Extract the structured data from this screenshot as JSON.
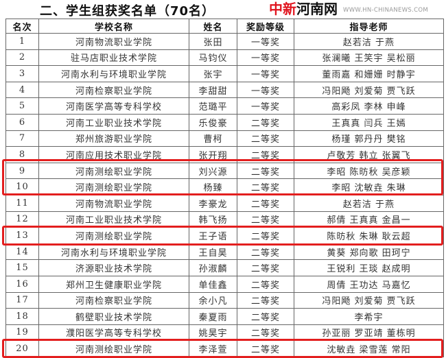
{
  "title": "二、学生组获奖名单（70名）",
  "headers": [
    "名次",
    "学校名称",
    "姓名",
    "奖励等级",
    "指导老师"
  ],
  "rows": [
    [
      "1",
      "河南物流职业学院",
      "张田",
      "一等奖",
      "赵若洁 于燕"
    ],
    [
      "2",
      "驻马店职业技术学院",
      "马钧仪",
      "一等奖",
      "张澜曦 王笑宇 吴松丽"
    ],
    [
      "3",
      "河南水利与环境职业学院",
      "张宇",
      "一等奖",
      "董雨嘉 和姗姗 时静宇"
    ],
    [
      "4",
      "河南检察职业学院",
      "李甜甜",
      "一等奖",
      "冯阳飏 刘爱菊 贾飞跃"
    ],
    [
      "5",
      "河南医学高等专科学校",
      "范璐平",
      "一等奖",
      "高彩凤 李林 申峰"
    ],
    [
      "6",
      "河南工业职业技术学院",
      "乐俊豪",
      "二等奖",
      "王真真 闫兵 王嫣"
    ],
    [
      "7",
      "郑州旅游职业学院",
      "曹柯",
      "二等奖",
      "杨瑾 郭丹丹 樊铭"
    ],
    [
      "8",
      "河南应用技术职业学院",
      "张开翔",
      "二等奖",
      "卢敬芳 韩立 张翼飞"
    ],
    [
      "9",
      "河南测绘职业学院",
      "刘兴源",
      "二等奖",
      "李昭 陈昉秋 吴彦颖"
    ],
    [
      "10",
      "河南测绘职业学院",
      "杨臻",
      "二等奖",
      "李昭 沈敏垚 朱琳"
    ],
    [
      "11",
      "河南物流职业学院",
      "李豪龙",
      "二等奖",
      "赵若洁 于燕"
    ],
    [
      "12",
      "河南工业职业技术学院",
      "韩飞扬",
      "二等奖",
      "郝倩 王真真 金昌一"
    ],
    [
      "13",
      "河南测绘职业学院",
      "王子语",
      "二等奖",
      "陈昉秋 朱琳 耿云超"
    ],
    [
      "14",
      "河南水利与环境职业学院",
      "王自昊",
      "二等奖",
      "黄葵 郑向歌 田珂宁"
    ],
    [
      "15",
      "济源职业技术学院",
      "孙淑麟",
      "二等奖",
      "王锐利 王琰 赵成明"
    ],
    [
      "16",
      "郑州卫生健康职业学院",
      "单佳鑫",
      "二等奖",
      "周倩 王功达 马嘉忆"
    ],
    [
      "17",
      "河南检察职业学院",
      "余小凡",
      "二等奖",
      "冯阳飏 刘爱菊 贾飞跃"
    ],
    [
      "18",
      "鹤壁职业技术学院",
      "秦夏雨",
      "二等奖",
      "李希宇"
    ],
    [
      "19",
      "濮阳医学高等专科学校",
      "姚昊宇",
      "二等奖",
      "孙亚丽 罗亚靖 董栋明"
    ],
    [
      "20",
      "河南测绘职业学院",
      "李泽萱",
      "二等奖",
      "沈敏垚 梁雪莲 常阳"
    ]
  ],
  "highlight_color": "#e31e1e",
  "highlighted_ranks": [
    "9",
    "10",
    "13",
    "20"
  ],
  "watermark": {
    "red": "中新",
    "black": "河南网",
    "url": "WWW.HN-CHINANEWS.COM"
  }
}
